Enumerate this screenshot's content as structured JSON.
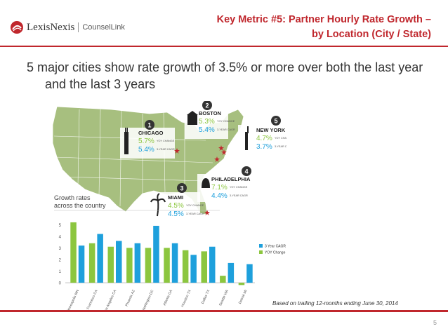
{
  "header": {
    "logo_brand": "LexisNexis",
    "logo_product": "CounselLink",
    "title_line1": "Key Metric #5: Partner Hourly Rate Growth –",
    "title_line2": "by Location (City / State)",
    "accent_color": "#c0272d"
  },
  "headline": {
    "line1": "5 major cities show rate growth of 3.5% or more over both",
    "line2": "the last year and the last 3 years"
  },
  "map": {
    "cities": [
      {
        "rank": "1",
        "name": "CHICAGO",
        "yoy": "5.7%",
        "yoy_label": "YOY CHANGE",
        "cagr": "5.4%",
        "cagr_label": "3-YEAR CAGR",
        "icon": "skyscraper-icon"
      },
      {
        "rank": "2",
        "name": "BOSTON",
        "yoy": "5.3%",
        "yoy_label": "YOY CHANGE",
        "cagr": "5.4%",
        "cagr_label": "3-YEAR CAGR",
        "icon": "building-icon"
      },
      {
        "rank": "3",
        "name": "MIAMI",
        "yoy": "4.5%",
        "yoy_label": "YOY CHANGE",
        "cagr": "4.5%",
        "cagr_label": "3-YEAR CAGR",
        "icon": "palm-tree-icon"
      },
      {
        "rank": "4",
        "name": "PHILADELPHIA",
        "yoy": "7.1%",
        "yoy_label": "YOY CHANGE",
        "cagr": "4.4%",
        "cagr_label": "3-YEAR CAGR",
        "icon": "liberty-bell-icon"
      },
      {
        "rank": "5",
        "name": "NEW YORK",
        "yoy": "4.7%",
        "yoy_label": "YOY CHANGE",
        "cagr": "3.7%",
        "cagr_label": "3-YEAR CAGR",
        "icon": "statue-of-liberty-icon"
      }
    ]
  },
  "chart_data": {
    "type": "bar",
    "title": "Growth rates across the country",
    "categories": [
      "Minneapolis MN",
      "San Francisco CA",
      "Los Angeles CA",
      "Phoenix AZ",
      "Washington DC",
      "Atlanta GA",
      "Houston TX",
      "Dallas TX",
      "Seattle WA",
      "Detroit MI"
    ],
    "series": [
      {
        "name": "YOY Change",
        "color": "#8cc63f",
        "values": [
          5.2,
          3.4,
          3.1,
          3.0,
          3.0,
          3.0,
          2.8,
          2.7,
          0.6,
          -0.2
        ]
      },
      {
        "name": "3 Year CAGR",
        "color": "#1ea0dc",
        "values": [
          3.2,
          4.2,
          3.6,
          3.4,
          4.9,
          3.4,
          2.4,
          3.1,
          1.7,
          1.6
        ]
      }
    ],
    "ylim": [
      -0.3,
      5.5
    ],
    "yticks": [
      "0",
      "1",
      "2",
      "3",
      "4",
      "5"
    ],
    "legend_position": "right",
    "grid": false
  },
  "footer": {
    "footnote": "Based on trailing 12-months ending June 30, 2014",
    "page_number": "5"
  }
}
